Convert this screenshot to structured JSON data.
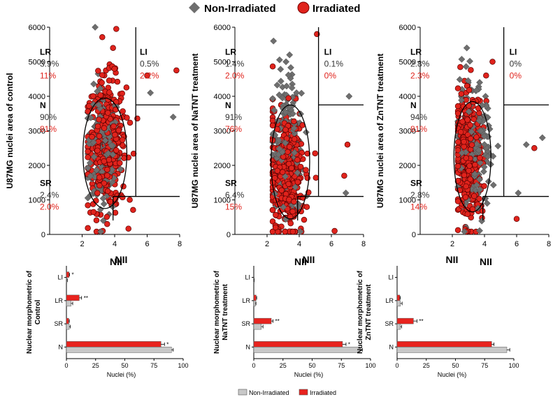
{
  "legend_top": {
    "non_irradiated": "Non-Irradiated",
    "irradiated": "Irradiated"
  },
  "legend_bottom": {
    "non_irradiated": "Non-Irradiated",
    "irradiated": "Irradiated"
  },
  "colors": {
    "non_irradiated_marker": "#6e6e6e",
    "irradiated_marker": "#e0231c",
    "bar_non_irradiated": "#c8c8c8",
    "bar_irradiated": "#e8231e",
    "annotation_gray": "#333333",
    "annotation_red": "#e0231c"
  },
  "chart_data": [
    {
      "type": "scatter",
      "name": "scatter-control",
      "ylabel": "U87MG nuclei area of control",
      "xlabel": "NII",
      "xlim": [
        0,
        8
      ],
      "ylim": [
        0,
        6000
      ],
      "xticks": [
        2,
        4,
        6,
        8
      ],
      "yticks": [
        0,
        1000,
        2000,
        3000,
        4000,
        5000,
        6000
      ],
      "thresholds": {
        "x": 5.3,
        "y_lower": 1100,
        "y_upper": 3750
      },
      "ellipse": {
        "cx": 3.4,
        "cy": 2350,
        "rx": 1.35,
        "ry": 1600
      },
      "regions": [
        {
          "label": "LR",
          "non_irradiated": "3.9%",
          "irradiated": "11%"
        },
        {
          "label": "LI",
          "non_irradiated": "0.5%",
          "irradiated": "2.2%"
        },
        {
          "label": "N",
          "non_irradiated": "90%",
          "irradiated": "81%"
        },
        {
          "label": "SR",
          "non_irradiated": "2.4%",
          "irradiated": "2.0%"
        }
      ],
      "series": [
        {
          "name": "Non-Irradiated",
          "x_center": 3.3,
          "x_spread": 0.5,
          "y_center": 2400,
          "y_spread": 900,
          "count": 170,
          "outliers": [
            [
              2.8,
              6000
            ],
            [
              3.3,
              400
            ],
            [
              7.6,
              3400
            ],
            [
              6.2,
              4100
            ]
          ]
        },
        {
          "name": "Irradiated",
          "x_center": 3.5,
          "x_spread": 0.6,
          "y_center": 2600,
          "y_spread": 950,
          "count": 380,
          "outliers": [
            [
              4.1,
              5950
            ],
            [
              7.8,
              4750
            ],
            [
              6.0,
              4600
            ],
            [
              3.9,
              5400
            ]
          ]
        }
      ]
    },
    {
      "type": "scatter",
      "name": "scatter-natnt",
      "ylabel": "U87MG nuclei area of NaTNT treatment",
      "xlabel": "NII",
      "xlim": [
        0,
        8
      ],
      "ylim": [
        0,
        6000
      ],
      "xticks": [
        2,
        4,
        6,
        8
      ],
      "yticks": [
        0,
        1000,
        2000,
        3000,
        4000,
        5000,
        6000
      ],
      "thresholds": {
        "x": 5.2,
        "y_lower": 1100,
        "y_upper": 3750
      },
      "ellipse": {
        "cx": 3.45,
        "cy": 2100,
        "rx": 1.2,
        "ry": 1650
      },
      "regions": [
        {
          "label": "LR",
          "non_irradiated": "1.4%",
          "irradiated": "2.0%"
        },
        {
          "label": "LI",
          "non_irradiated": "0.1%",
          "irradiated": "0%"
        },
        {
          "label": "N",
          "non_irradiated": "91%",
          "irradiated": "76%"
        },
        {
          "label": "SR",
          "non_irradiated": "6.4%",
          "irradiated": "15%"
        }
      ],
      "series": [
        {
          "name": "Non-Irradiated",
          "x_center": 3.3,
          "x_spread": 0.55,
          "y_center": 2700,
          "y_spread": 1000,
          "count": 170,
          "outliers": [
            [
              2.4,
              5600
            ],
            [
              3.4,
              5200
            ],
            [
              7.1,
              4000
            ],
            [
              6.9,
              1200
            ]
          ]
        },
        {
          "name": "Irradiated",
          "x_center": 3.2,
          "x_spread": 0.55,
          "y_center": 1700,
          "y_spread": 900,
          "count": 380,
          "outliers": [
            [
              5.1,
              5800
            ],
            [
              6.8,
              1700
            ],
            [
              6.2,
              100
            ],
            [
              7.0,
              2600
            ]
          ]
        }
      ]
    },
    {
      "type": "scatter",
      "name": "scatter-zntnt",
      "ylabel": "U87MG nuclei area of ZnTNT treatment",
      "xlabel": "NII",
      "xlim": [
        0,
        8
      ],
      "ylim": [
        0,
        6000
      ],
      "xticks": [
        2,
        4,
        6,
        8
      ],
      "yticks": [
        0,
        1000,
        2000,
        3000,
        4000,
        5000,
        6000
      ],
      "thresholds": {
        "x": 5.2,
        "y_lower": 1100,
        "y_upper": 3750
      },
      "ellipse": {
        "cx": 3.25,
        "cy": 2250,
        "rx": 1.15,
        "ry": 1600
      },
      "regions": [
        {
          "label": "LR",
          "non_irradiated": "2.8%",
          "irradiated": "2.3%"
        },
        {
          "label": "LI",
          "non_irradiated": "0%",
          "irradiated": "0%"
        },
        {
          "label": "N",
          "non_irradiated": "94%",
          "irradiated": "81%"
        },
        {
          "label": "SR",
          "non_irradiated": "2.8%",
          "irradiated": "14%"
        }
      ],
      "series": [
        {
          "name": "Non-Irradiated",
          "x_center": 3.4,
          "x_spread": 0.55,
          "y_center": 2500,
          "y_spread": 900,
          "count": 170,
          "outliers": [
            [
              2.9,
              5400
            ],
            [
              7.6,
              2800
            ],
            [
              6.6,
              2600
            ],
            [
              6.1,
              1200
            ]
          ]
        },
        {
          "name": "Irradiated",
          "x_center": 3.0,
          "x_spread": 0.45,
          "y_center": 2300,
          "y_spread": 900,
          "count": 380,
          "outliers": [
            [
              4.5,
              5000
            ],
            [
              7.1,
              2500
            ],
            [
              6.0,
              450
            ],
            [
              4.1,
              4600
            ]
          ]
        }
      ]
    },
    {
      "type": "bar",
      "name": "bars-control",
      "orientation": "horizontal",
      "title": "NII",
      "ylabel": "Nuclear morphometric of Control",
      "xlabel": "Nuclei (%)",
      "xlim": [
        0,
        100
      ],
      "xticks": [
        0,
        25,
        50,
        75,
        100
      ],
      "categories": [
        "LI",
        "LR",
        "SR",
        "N"
      ],
      "series": [
        {
          "name": "Non-Irradiated",
          "values": [
            0.5,
            3.9,
            2.4,
            90
          ],
          "errors": [
            0.3,
            1.5,
            1,
            1.5
          ]
        },
        {
          "name": "Irradiated",
          "values": [
            2.2,
            11,
            2.0,
            81
          ],
          "errors": [
            0.5,
            2,
            0.5,
            3
          ]
        }
      ],
      "significance": {
        "LI": "*",
        "LR": "**",
        "SR": "",
        "N": "*"
      }
    },
    {
      "type": "bar",
      "name": "bars-natnt",
      "orientation": "horizontal",
      "title": "NII",
      "ylabel": "Nuclear morphometric of NaTNT treatment",
      "xlabel": "Nuclei (%)",
      "xlim": [
        0,
        100
      ],
      "xticks": [
        0,
        25,
        50,
        75,
        100
      ],
      "categories": [
        "LI",
        "LR",
        "SR",
        "N"
      ],
      "series": [
        {
          "name": "Non-Irradiated",
          "values": [
            0.1,
            1.4,
            6.4,
            91
          ],
          "errors": [
            0.1,
            0.5,
            1.5,
            2
          ]
        },
        {
          "name": "Irradiated",
          "values": [
            0,
            2.0,
            15,
            76
          ],
          "errors": [
            0,
            0.5,
            1.5,
            3
          ]
        }
      ],
      "significance": {
        "LI": "",
        "LR": "",
        "SR": "**",
        "N": "*"
      }
    },
    {
      "type": "bar",
      "name": "bars-zntnt",
      "orientation": "horizontal",
      "title": "NII",
      "ylabel": "Nuclear morphometric of ZnTNT treatment",
      "xlabel": "Nuclei (%)",
      "xlim": [
        0,
        100
      ],
      "xticks": [
        0,
        25,
        50,
        75,
        100
      ],
      "categories": [
        "LI",
        "LR",
        "SR",
        "N"
      ],
      "series": [
        {
          "name": "Non-Irradiated",
          "values": [
            0,
            2.8,
            2.8,
            94
          ],
          "errors": [
            0,
            1.5,
            1,
            2.5
          ]
        },
        {
          "name": "Irradiated",
          "values": [
            0,
            2.3,
            14,
            81
          ],
          "errors": [
            0,
            0.5,
            3,
            2
          ]
        }
      ],
      "significance": {
        "LI": "",
        "LR": "",
        "SR": "**",
        "N": ""
      }
    }
  ]
}
